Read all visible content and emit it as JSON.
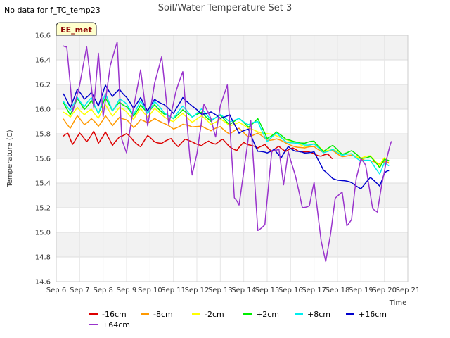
{
  "note": "No data for f_TC_temp23",
  "chart_data": {
    "type": "line",
    "title": "Soil/Water Temperature Set 3",
    "xlabel": "Time",
    "ylabel": "Temperature (C)",
    "badge": "EE_met",
    "xlim": [
      6,
      21
    ],
    "ylim": [
      14.6,
      16.6
    ],
    "x_ticks": [
      {
        "v": 6,
        "label": "Sep 6"
      },
      {
        "v": 7,
        "label": "Sep 7"
      },
      {
        "v": 8,
        "label": "Sep 8"
      },
      {
        "v": 9,
        "label": "Sep 9"
      },
      {
        "v": 10,
        "label": "Sep 10"
      },
      {
        "v": 11,
        "label": "Sep 11"
      },
      {
        "v": 12,
        "label": "Sep 12"
      },
      {
        "v": 13,
        "label": "Sep 13"
      },
      {
        "v": 14,
        "label": "Sep 14"
      },
      {
        "v": 15,
        "label": "Sep 15"
      },
      {
        "v": 16,
        "label": "Sep 16"
      },
      {
        "v": 17,
        "label": "Sep 17"
      },
      {
        "v": 18,
        "label": "Sep 18"
      },
      {
        "v": 19,
        "label": "Sep 19"
      },
      {
        "v": 20,
        "label": "Sep 20"
      },
      {
        "v": 21,
        "label": "Sep 21"
      }
    ],
    "y_ticks": [
      "14.6",
      "14.8",
      "15.0",
      "15.2",
      "15.4",
      "15.6",
      "15.8",
      "16.0",
      "16.2",
      "16.4",
      "16.6"
    ],
    "series": [
      {
        "name": "-16cm",
        "color": "#dd0000",
        "x": [
          6.3,
          6.5,
          6.7,
          7.0,
          7.3,
          7.6,
          7.8,
          8.1,
          8.4,
          8.7,
          9.0,
          9.3,
          9.6,
          9.9,
          10.2,
          10.5,
          10.9,
          11.2,
          11.5,
          11.8,
          12.2,
          12.5,
          12.8,
          13.1,
          13.4,
          13.7,
          14.0,
          14.3,
          14.6,
          14.9,
          15.2,
          15.5,
          15.8,
          16.1,
          16.4,
          16.7,
          17.0,
          17.3,
          17.6,
          17.8
        ],
        "y": [
          15.78,
          15.8,
          15.72,
          15.8,
          15.74,
          15.82,
          15.72,
          15.82,
          15.7,
          15.78,
          15.8,
          15.74,
          15.7,
          15.78,
          15.74,
          15.72,
          15.76,
          15.7,
          15.75,
          15.74,
          15.7,
          15.74,
          15.72,
          15.75,
          15.7,
          15.66,
          15.73,
          15.71,
          15.68,
          15.72,
          15.65,
          15.7,
          15.66,
          15.68,
          15.66,
          15.65,
          15.64,
          15.62,
          15.63,
          15.6
        ]
      },
      {
        "name": "-8cm",
        "color": "#ff9900",
        "x": [
          6.3,
          6.6,
          6.9,
          7.2,
          7.5,
          7.8,
          8.1,
          8.4,
          8.7,
          9.0,
          9.3,
          9.6,
          9.9,
          10.2,
          10.6,
          11.0,
          11.4,
          11.8,
          12.2,
          12.6,
          13.0,
          13.4,
          13.8,
          14.2,
          14.6,
          15.0,
          15.4,
          15.8,
          16.2,
          16.6,
          17.0,
          17.4,
          17.8,
          18.2,
          18.6,
          19.0,
          19.4,
          19.8,
          20.0,
          20.2
        ],
        "y": [
          15.92,
          15.85,
          15.94,
          15.88,
          15.92,
          15.86,
          15.95,
          15.86,
          15.94,
          15.91,
          15.85,
          15.92,
          15.88,
          15.93,
          15.88,
          15.84,
          15.88,
          15.85,
          15.87,
          15.82,
          15.86,
          15.8,
          15.84,
          15.78,
          15.8,
          15.75,
          15.76,
          15.72,
          15.7,
          15.68,
          15.7,
          15.65,
          15.66,
          15.62,
          15.62,
          15.6,
          15.58,
          15.55,
          15.58,
          15.56
        ]
      },
      {
        "name": "-2cm",
        "color": "#ffff00",
        "x": [
          6.3,
          6.6,
          6.9,
          7.2,
          7.5,
          7.8,
          8.1,
          8.4,
          8.7,
          9.0,
          9.3,
          9.6,
          9.9,
          10.2,
          10.6,
          11.0,
          11.4,
          11.8,
          12.2,
          12.6,
          13.0,
          13.4,
          13.8,
          14.2,
          14.6,
          15.0,
          15.4,
          15.8,
          16.2,
          16.6,
          17.0,
          17.4,
          17.8,
          18.2,
          18.6,
          19.0,
          19.4,
          19.8,
          20.0,
          20.2
        ],
        "y": [
          15.98,
          15.93,
          16.02,
          15.95,
          16.0,
          15.93,
          16.03,
          15.95,
          16.01,
          15.98,
          15.92,
          16.0,
          15.94,
          16.0,
          15.94,
          15.9,
          15.96,
          15.9,
          15.94,
          15.88,
          15.92,
          15.86,
          15.9,
          15.84,
          15.82,
          15.8,
          15.78,
          15.76,
          15.72,
          15.7,
          15.72,
          15.66,
          15.68,
          15.63,
          15.64,
          15.6,
          15.62,
          15.55,
          15.6,
          15.58
        ]
      },
      {
        "name": "+2cm",
        "color": "#00ee00",
        "x": [
          6.3,
          6.6,
          6.9,
          7.2,
          7.5,
          7.8,
          8.1,
          8.4,
          8.7,
          9.0,
          9.3,
          9.6,
          9.9,
          10.2,
          10.6,
          11.0,
          11.4,
          11.8,
          12.2,
          12.6,
          13.0,
          13.4,
          13.8,
          14.2,
          14.6,
          15.0,
          15.4,
          15.8,
          16.2,
          16.6,
          17.0,
          17.4,
          17.8,
          18.2,
          18.6,
          19.0,
          19.4,
          19.8,
          20.0,
          20.2
        ],
        "y": [
          16.05,
          15.96,
          16.08,
          16.0,
          16.07,
          15.96,
          16.1,
          15.98,
          16.06,
          16.02,
          15.94,
          16.04,
          15.96,
          16.04,
          15.96,
          15.92,
          16.0,
          15.93,
          15.98,
          15.9,
          15.95,
          15.88,
          15.92,
          15.86,
          15.92,
          15.76,
          15.82,
          15.75,
          15.74,
          15.72,
          15.74,
          15.66,
          15.7,
          15.64,
          15.66,
          15.6,
          15.62,
          15.52,
          15.6,
          15.58
        ]
      },
      {
        "name": "+8cm",
        "color": "#00eeee",
        "x": [
          6.3,
          6.6,
          6.9,
          7.2,
          7.5,
          7.8,
          8.1,
          8.4,
          8.7,
          9.0,
          9.3,
          9.6,
          9.9,
          10.2,
          10.6,
          11.0,
          11.4,
          11.8,
          12.2,
          12.6,
          13.0,
          13.4,
          13.8,
          14.2,
          14.6,
          15.0,
          15.4,
          15.8,
          16.2,
          16.6,
          17.0,
          17.4,
          17.8,
          18.2,
          18.6,
          19.0,
          19.4,
          19.8,
          20.0,
          20.2
        ],
        "y": [
          16.07,
          15.98,
          16.1,
          16.02,
          16.09,
          15.97,
          16.12,
          15.99,
          16.08,
          16.04,
          15.96,
          16.06,
          15.97,
          16.06,
          15.97,
          15.93,
          16.02,
          15.94,
          16.0,
          15.91,
          15.96,
          15.89,
          15.93,
          15.87,
          15.9,
          15.74,
          15.8,
          15.74,
          15.72,
          15.71,
          15.72,
          15.64,
          15.68,
          15.62,
          15.64,
          15.58,
          15.58,
          15.48,
          15.56,
          15.54
        ]
      },
      {
        "name": "+16cm",
        "color": "#0000cc",
        "x": [
          6.3,
          6.6,
          6.9,
          7.2,
          7.5,
          7.8,
          8.1,
          8.4,
          8.7,
          9.0,
          9.3,
          9.6,
          9.9,
          10.2,
          10.6,
          11.0,
          11.4,
          11.8,
          12.2,
          12.6,
          13.0,
          13.4,
          13.8,
          14.2,
          14.6,
          15.0,
          15.3,
          15.6,
          15.9,
          16.2,
          16.6,
          17.0,
          17.4,
          17.8,
          18.2,
          18.6,
          19.0,
          19.4,
          19.8,
          20.0,
          20.2
        ],
        "y": [
          16.12,
          16.02,
          16.16,
          16.08,
          16.14,
          16.02,
          16.2,
          16.1,
          16.16,
          16.1,
          16.0,
          16.1,
          15.98,
          16.08,
          16.04,
          15.96,
          16.1,
          16.02,
          15.96,
          15.98,
          15.92,
          15.96,
          15.8,
          15.84,
          15.66,
          15.64,
          15.68,
          15.6,
          15.7,
          15.66,
          15.64,
          15.66,
          15.5,
          15.44,
          15.42,
          15.4,
          15.36,
          15.44,
          15.38,
          15.48,
          15.5
        ]
      },
      {
        "name": "+64cm",
        "color": "#9933cc",
        "x": [
          6.3,
          6.45,
          6.7,
          7.0,
          7.3,
          7.6,
          7.8,
          8.0,
          8.3,
          8.6,
          8.8,
          9.0,
          9.3,
          9.6,
          9.9,
          10.2,
          10.5,
          10.8,
          11.1,
          11.4,
          11.7,
          11.8,
          12.0,
          12.3,
          12.6,
          12.8,
          13.0,
          13.3,
          13.6,
          13.8,
          14.0,
          14.3,
          14.6,
          14.9,
          15.2,
          15.5,
          15.7,
          15.9,
          16.2,
          16.5,
          16.8,
          17.0,
          17.3,
          17.5,
          17.7,
          17.9,
          18.2,
          18.4,
          18.6,
          18.8,
          19.0,
          19.2,
          19.5,
          19.7,
          19.9,
          20.1,
          20.3
        ],
        "y": [
          16.52,
          16.5,
          15.98,
          16.2,
          16.5,
          16.02,
          16.45,
          15.94,
          16.35,
          16.54,
          15.76,
          15.64,
          16.02,
          16.32,
          15.86,
          16.22,
          16.42,
          15.88,
          16.14,
          16.3,
          15.62,
          15.46,
          15.64,
          16.04,
          15.92,
          15.78,
          16.02,
          16.2,
          15.28,
          15.22,
          15.5,
          15.9,
          15.02,
          15.06,
          15.66,
          15.68,
          15.38,
          15.66,
          15.46,
          15.2,
          15.22,
          15.4,
          14.94,
          14.76,
          14.98,
          15.28,
          15.32,
          15.06,
          15.1,
          15.44,
          15.6,
          15.54,
          15.2,
          15.16,
          15.4,
          15.6,
          15.74
        ]
      }
    ]
  }
}
